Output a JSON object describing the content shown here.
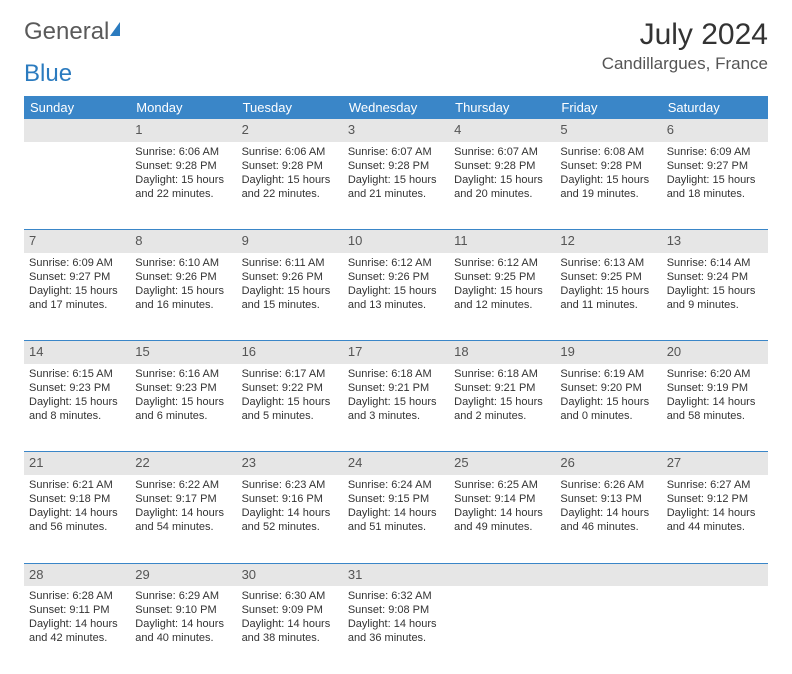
{
  "logo": {
    "part1": "General",
    "part2": "Blue"
  },
  "title": "July 2024",
  "location": "Candillargues, France",
  "weekday_header_bg": "#3a86c8",
  "daynum_bg": "#e6e6e6",
  "weekdays": [
    "Sunday",
    "Monday",
    "Tuesday",
    "Wednesday",
    "Thursday",
    "Friday",
    "Saturday"
  ],
  "weeks": [
    [
      null,
      {
        "n": "1",
        "sr": "Sunrise: 6:06 AM",
        "ss": "Sunset: 9:28 PM",
        "d1": "Daylight: 15 hours",
        "d2": "and 22 minutes."
      },
      {
        "n": "2",
        "sr": "Sunrise: 6:06 AM",
        "ss": "Sunset: 9:28 PM",
        "d1": "Daylight: 15 hours",
        "d2": "and 22 minutes."
      },
      {
        "n": "3",
        "sr": "Sunrise: 6:07 AM",
        "ss": "Sunset: 9:28 PM",
        "d1": "Daylight: 15 hours",
        "d2": "and 21 minutes."
      },
      {
        "n": "4",
        "sr": "Sunrise: 6:07 AM",
        "ss": "Sunset: 9:28 PM",
        "d1": "Daylight: 15 hours",
        "d2": "and 20 minutes."
      },
      {
        "n": "5",
        "sr": "Sunrise: 6:08 AM",
        "ss": "Sunset: 9:28 PM",
        "d1": "Daylight: 15 hours",
        "d2": "and 19 minutes."
      },
      {
        "n": "6",
        "sr": "Sunrise: 6:09 AM",
        "ss": "Sunset: 9:27 PM",
        "d1": "Daylight: 15 hours",
        "d2": "and 18 minutes."
      }
    ],
    [
      {
        "n": "7",
        "sr": "Sunrise: 6:09 AM",
        "ss": "Sunset: 9:27 PM",
        "d1": "Daylight: 15 hours",
        "d2": "and 17 minutes."
      },
      {
        "n": "8",
        "sr": "Sunrise: 6:10 AM",
        "ss": "Sunset: 9:26 PM",
        "d1": "Daylight: 15 hours",
        "d2": "and 16 minutes."
      },
      {
        "n": "9",
        "sr": "Sunrise: 6:11 AM",
        "ss": "Sunset: 9:26 PM",
        "d1": "Daylight: 15 hours",
        "d2": "and 15 minutes."
      },
      {
        "n": "10",
        "sr": "Sunrise: 6:12 AM",
        "ss": "Sunset: 9:26 PM",
        "d1": "Daylight: 15 hours",
        "d2": "and 13 minutes."
      },
      {
        "n": "11",
        "sr": "Sunrise: 6:12 AM",
        "ss": "Sunset: 9:25 PM",
        "d1": "Daylight: 15 hours",
        "d2": "and 12 minutes."
      },
      {
        "n": "12",
        "sr": "Sunrise: 6:13 AM",
        "ss": "Sunset: 9:25 PM",
        "d1": "Daylight: 15 hours",
        "d2": "and 11 minutes."
      },
      {
        "n": "13",
        "sr": "Sunrise: 6:14 AM",
        "ss": "Sunset: 9:24 PM",
        "d1": "Daylight: 15 hours",
        "d2": "and 9 minutes."
      }
    ],
    [
      {
        "n": "14",
        "sr": "Sunrise: 6:15 AM",
        "ss": "Sunset: 9:23 PM",
        "d1": "Daylight: 15 hours",
        "d2": "and 8 minutes."
      },
      {
        "n": "15",
        "sr": "Sunrise: 6:16 AM",
        "ss": "Sunset: 9:23 PM",
        "d1": "Daylight: 15 hours",
        "d2": "and 6 minutes."
      },
      {
        "n": "16",
        "sr": "Sunrise: 6:17 AM",
        "ss": "Sunset: 9:22 PM",
        "d1": "Daylight: 15 hours",
        "d2": "and 5 minutes."
      },
      {
        "n": "17",
        "sr": "Sunrise: 6:18 AM",
        "ss": "Sunset: 9:21 PM",
        "d1": "Daylight: 15 hours",
        "d2": "and 3 minutes."
      },
      {
        "n": "18",
        "sr": "Sunrise: 6:18 AM",
        "ss": "Sunset: 9:21 PM",
        "d1": "Daylight: 15 hours",
        "d2": "and 2 minutes."
      },
      {
        "n": "19",
        "sr": "Sunrise: 6:19 AM",
        "ss": "Sunset: 9:20 PM",
        "d1": "Daylight: 15 hours",
        "d2": "and 0 minutes."
      },
      {
        "n": "20",
        "sr": "Sunrise: 6:20 AM",
        "ss": "Sunset: 9:19 PM",
        "d1": "Daylight: 14 hours",
        "d2": "and 58 minutes."
      }
    ],
    [
      {
        "n": "21",
        "sr": "Sunrise: 6:21 AM",
        "ss": "Sunset: 9:18 PM",
        "d1": "Daylight: 14 hours",
        "d2": "and 56 minutes."
      },
      {
        "n": "22",
        "sr": "Sunrise: 6:22 AM",
        "ss": "Sunset: 9:17 PM",
        "d1": "Daylight: 14 hours",
        "d2": "and 54 minutes."
      },
      {
        "n": "23",
        "sr": "Sunrise: 6:23 AM",
        "ss": "Sunset: 9:16 PM",
        "d1": "Daylight: 14 hours",
        "d2": "and 52 minutes."
      },
      {
        "n": "24",
        "sr": "Sunrise: 6:24 AM",
        "ss": "Sunset: 9:15 PM",
        "d1": "Daylight: 14 hours",
        "d2": "and 51 minutes."
      },
      {
        "n": "25",
        "sr": "Sunrise: 6:25 AM",
        "ss": "Sunset: 9:14 PM",
        "d1": "Daylight: 14 hours",
        "d2": "and 49 minutes."
      },
      {
        "n": "26",
        "sr": "Sunrise: 6:26 AM",
        "ss": "Sunset: 9:13 PM",
        "d1": "Daylight: 14 hours",
        "d2": "and 46 minutes."
      },
      {
        "n": "27",
        "sr": "Sunrise: 6:27 AM",
        "ss": "Sunset: 9:12 PM",
        "d1": "Daylight: 14 hours",
        "d2": "and 44 minutes."
      }
    ],
    [
      {
        "n": "28",
        "sr": "Sunrise: 6:28 AM",
        "ss": "Sunset: 9:11 PM",
        "d1": "Daylight: 14 hours",
        "d2": "and 42 minutes."
      },
      {
        "n": "29",
        "sr": "Sunrise: 6:29 AM",
        "ss": "Sunset: 9:10 PM",
        "d1": "Daylight: 14 hours",
        "d2": "and 40 minutes."
      },
      {
        "n": "30",
        "sr": "Sunrise: 6:30 AM",
        "ss": "Sunset: 9:09 PM",
        "d1": "Daylight: 14 hours",
        "d2": "and 38 minutes."
      },
      {
        "n": "31",
        "sr": "Sunrise: 6:32 AM",
        "ss": "Sunset: 9:08 PM",
        "d1": "Daylight: 14 hours",
        "d2": "and 36 minutes."
      },
      null,
      null,
      null
    ]
  ]
}
